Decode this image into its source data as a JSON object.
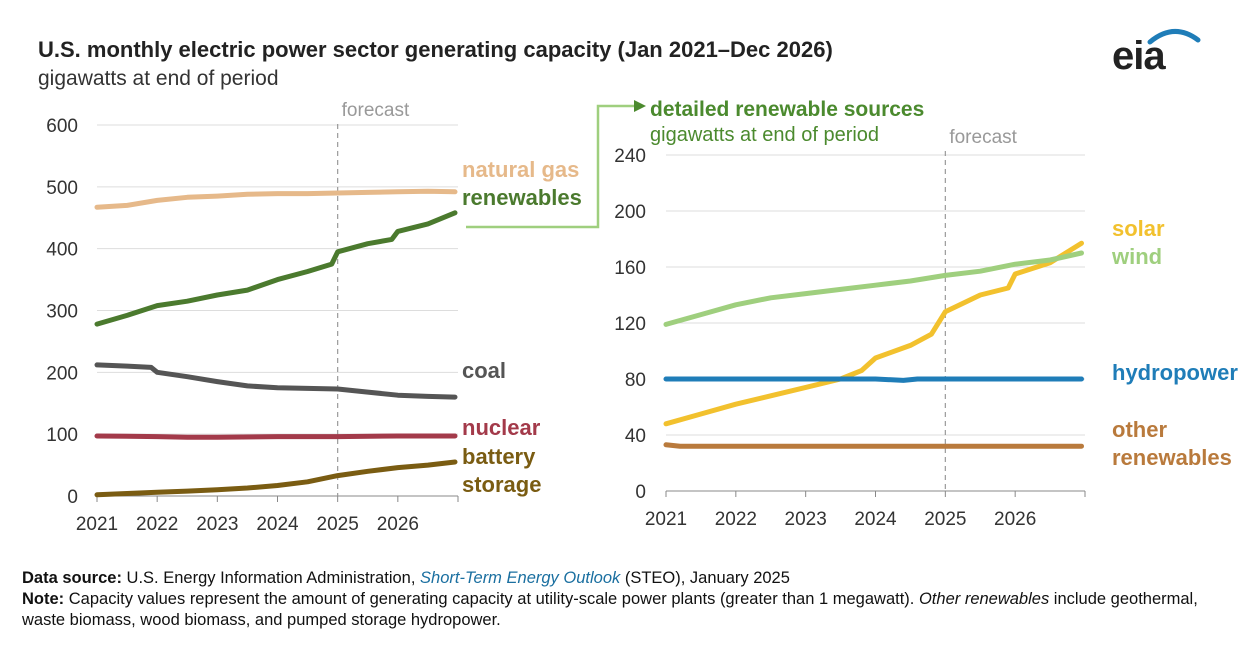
{
  "header": {
    "title": "U.S. monthly electric power sector generating capacity (Jan 2021–Dec 2026)",
    "subtitle": "gigawatts at end of period",
    "logo_text": "eia"
  },
  "footer": {
    "source_label": "Data source:",
    "source_text_pre": " U.S. Energy Information Administration, ",
    "source_link": "Short-Term Energy Outlook",
    "source_text_post": " (STEO), January 2025",
    "note_label": "Note:",
    "note_text_1": " Capacity values represent the amount of generating capacity at utility-scale power plants (greater than 1 megawatt). ",
    "note_em": "Other renewables",
    "note_text_2": " include geothermal, waste biomass, wood biomass, and pumped storage hydropower."
  },
  "colors": {
    "natural_gas": "#e6b98a",
    "renewables": "#4b7a2e",
    "coal": "#555555",
    "nuclear": "#a33a4a",
    "battery": "#7a5c12",
    "solar": "#f2c12e",
    "wind": "#9fcf7e",
    "hydropower": "#1f7db8",
    "other_renewables": "#b97a3c",
    "detail_label": "#4b8a2e",
    "forecast_line": "#999999",
    "grid": "#dddddd",
    "axis_text": "#333333"
  },
  "chart_data": [
    {
      "type": "line",
      "title": "",
      "ylabel": "",
      "xlim": [
        2021,
        2027
      ],
      "ylim": [
        0,
        600
      ],
      "yticks": [
        0,
        100,
        200,
        300,
        400,
        500,
        600
      ],
      "xticks": [
        "2021",
        "2022",
        "2023",
        "2024",
        "2025",
        "2026"
      ],
      "grid": true,
      "forecast_label": "forecast",
      "forecast_start": 2025,
      "series": [
        {
          "name": "natural gas",
          "color_key": "natural_gas",
          "label_lines": [
            "natural gas"
          ],
          "x": [
            2021,
            2021.5,
            2022,
            2022.5,
            2023,
            2023.5,
            2024,
            2024.5,
            2025,
            2025.5,
            2026,
            2026.5,
            2026.95
          ],
          "y": [
            467,
            470,
            478,
            483,
            485,
            488,
            489,
            489,
            490,
            491,
            492,
            493,
            492
          ]
        },
        {
          "name": "renewables",
          "color_key": "renewables",
          "label_lines": [
            "renewables"
          ],
          "x": [
            2021,
            2021.5,
            2022,
            2022.5,
            2023,
            2023.5,
            2024,
            2024.5,
            2024.9,
            2025,
            2025.5,
            2025.9,
            2026,
            2026.5,
            2026.95
          ],
          "y": [
            278,
            292,
            308,
            315,
            325,
            333,
            350,
            363,
            375,
            395,
            408,
            415,
            428,
            440,
            458
          ]
        },
        {
          "name": "coal",
          "color_key": "coal",
          "label_lines": [
            "coal"
          ],
          "x": [
            2021,
            2021.5,
            2021.9,
            2022,
            2022.5,
            2023,
            2023.5,
            2024,
            2024.5,
            2025,
            2025.5,
            2026,
            2026.5,
            2026.95
          ],
          "y": [
            212,
            210,
            208,
            200,
            193,
            185,
            178,
            175,
            174,
            173,
            168,
            163,
            161,
            160
          ]
        },
        {
          "name": "nuclear",
          "color_key": "nuclear",
          "label_lines": [
            "nuclear"
          ],
          "x": [
            2021,
            2022,
            2022.5,
            2023,
            2024,
            2025,
            2026,
            2026.95
          ],
          "y": [
            97,
            96,
            95,
            95,
            96,
            96,
            97,
            97
          ]
        },
        {
          "name": "battery storage",
          "color_key": "battery",
          "label_lines": [
            "battery",
            "storage"
          ],
          "x": [
            2021,
            2021.5,
            2022,
            2022.5,
            2023,
            2023.5,
            2024,
            2024.5,
            2025,
            2025.5,
            2026,
            2026.5,
            2026.95
          ],
          "y": [
            2,
            4,
            6,
            8,
            10,
            13,
            17,
            23,
            33,
            40,
            46,
            50,
            55
          ]
        }
      ]
    },
    {
      "type": "line",
      "title": "detailed renewable sources",
      "subtitle": "gigawatts at end of period",
      "ylabel": "",
      "xlim": [
        2021,
        2027
      ],
      "ylim": [
        0,
        240
      ],
      "yticks": [
        0,
        40,
        80,
        120,
        160,
        200,
        240
      ],
      "xticks": [
        "2021",
        "2022",
        "2023",
        "2024",
        "2025",
        "2026"
      ],
      "grid": true,
      "forecast_label": "forecast",
      "forecast_start": 2025,
      "series": [
        {
          "name": "solar",
          "color_key": "solar",
          "label_lines": [
            "solar"
          ],
          "x": [
            2021,
            2021.5,
            2022,
            2022.5,
            2023,
            2023.5,
            2023.8,
            2024,
            2024.5,
            2024.8,
            2025,
            2025.5,
            2025.9,
            2026,
            2026.5,
            2026.95
          ],
          "y": [
            48,
            55,
            62,
            68,
            74,
            80,
            86,
            95,
            104,
            112,
            128,
            140,
            145,
            155,
            163,
            177
          ]
        },
        {
          "name": "wind",
          "color_key": "wind",
          "label_lines": [
            "wind"
          ],
          "x": [
            2021,
            2021.5,
            2022,
            2022.5,
            2023,
            2023.5,
            2024,
            2024.5,
            2025,
            2025.5,
            2026,
            2026.5,
            2026.95
          ],
          "y": [
            119,
            126,
            133,
            138,
            141,
            144,
            147,
            150,
            154,
            157,
            162,
            165,
            170
          ]
        },
        {
          "name": "hydropower",
          "color_key": "hydropower",
          "label_lines": [
            "hydropower"
          ],
          "x": [
            2021,
            2022,
            2023,
            2024,
            2024.4,
            2024.6,
            2025,
            2026,
            2026.95
          ],
          "y": [
            80,
            80,
            80,
            80,
            79,
            80,
            80,
            80,
            80
          ]
        },
        {
          "name": "other renewables",
          "color_key": "other_renewables",
          "label_lines": [
            "other",
            "renewables"
          ],
          "x": [
            2021,
            2021.2,
            2022,
            2023,
            2024,
            2025,
            2026,
            2026.95
          ],
          "y": [
            33,
            32,
            32,
            32,
            32,
            32,
            32,
            32
          ]
        }
      ]
    }
  ]
}
